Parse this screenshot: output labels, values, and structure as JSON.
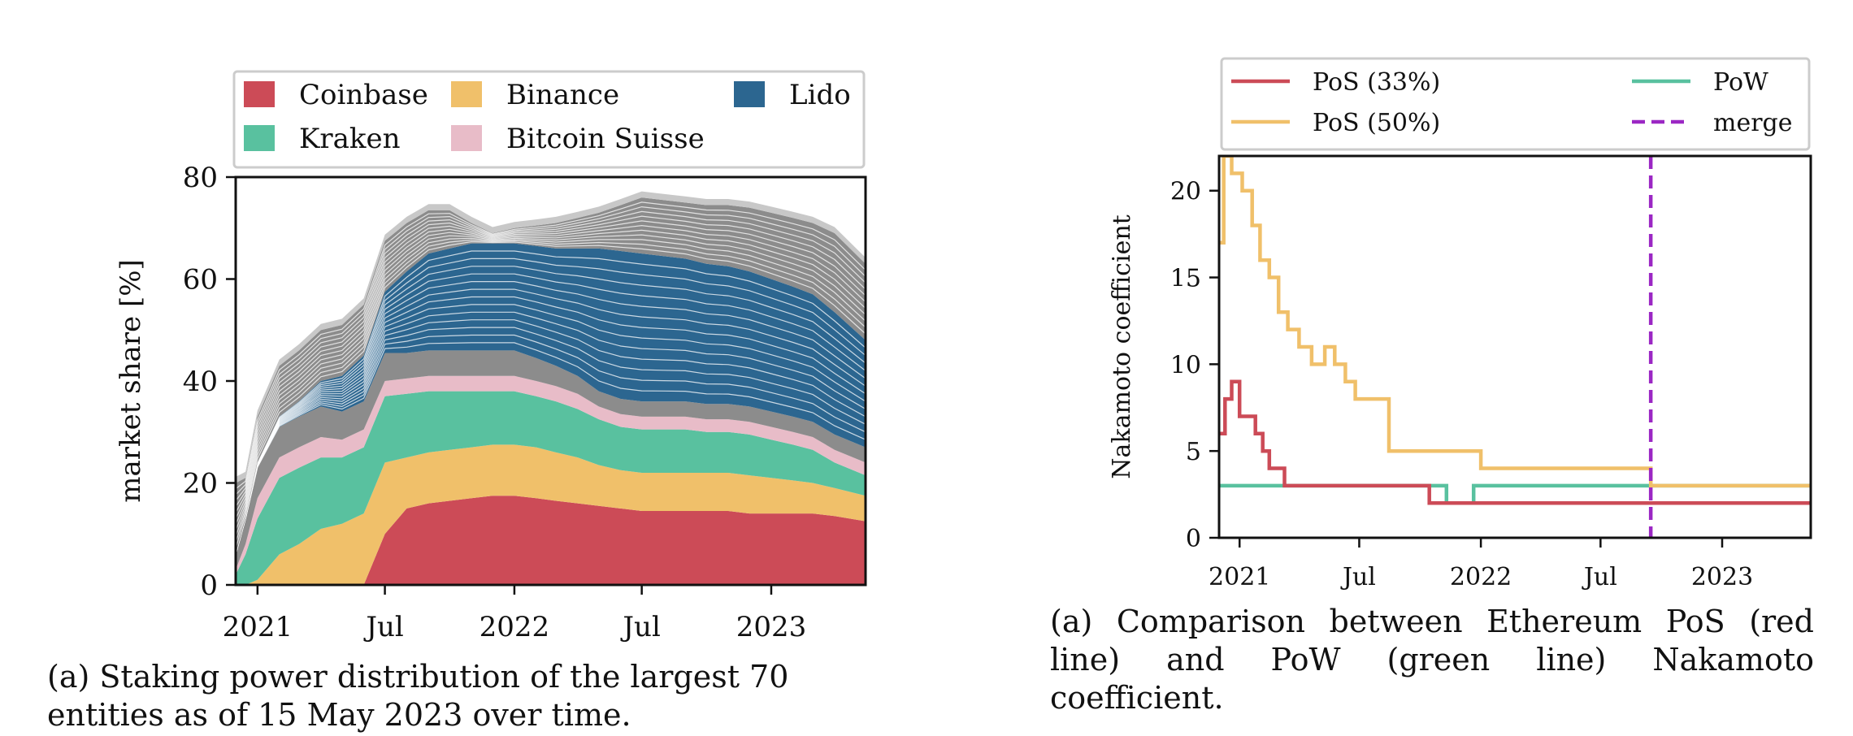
{
  "chart_data": [
    {
      "type": "area",
      "stacked": true,
      "ylabel": "market share [%]",
      "xlabel": "",
      "ylim": [
        0,
        80
      ],
      "yticks": [
        0,
        20,
        40,
        60,
        80
      ],
      "xticks": [
        "2021",
        "Jul",
        "2022",
        "Jul",
        "2023"
      ],
      "xtick_dates": [
        "2021-01-01",
        "2021-07-01",
        "2022-01-01",
        "2022-07-01",
        "2023-01-01"
      ],
      "xlim": [
        "2020-12-01",
        "2023-05-15"
      ],
      "legend_position": "top",
      "legend": [
        "Coinbase",
        "Binance",
        "Lido",
        "Kraken",
        "Bitcoin Suisse"
      ],
      "colors": {
        "Coinbase": "#cc4b57",
        "Binance": "#f0c06a",
        "Lido": "#2c6690",
        "Kraken": "#59c19f",
        "Bitcoin Suisse": "#e8bcc8",
        "other": "#8c8c8c"
      },
      "x": [
        "2020-12-01",
        "2020-12-15",
        "2021-01-01",
        "2021-02-01",
        "2021-03-01",
        "2021-04-01",
        "2021-05-01",
        "2021-06-01",
        "2021-07-01",
        "2021-08-01",
        "2021-09-01",
        "2021-10-01",
        "2021-11-01",
        "2021-12-01",
        "2022-01-01",
        "2022-02-01",
        "2022-03-01",
        "2022-04-01",
        "2022-05-01",
        "2022-06-01",
        "2022-07-01",
        "2022-08-01",
        "2022-09-01",
        "2022-10-01",
        "2022-11-01",
        "2022-12-01",
        "2023-01-01",
        "2023-02-01",
        "2023-03-01",
        "2023-04-01",
        "2023-05-15"
      ],
      "series": [
        {
          "name": "Coinbase",
          "values": [
            0,
            0,
            0,
            0,
            0,
            0,
            0,
            0,
            10,
            15,
            16,
            16.5,
            17,
            17.5,
            17.5,
            17,
            16.5,
            16,
            15.5,
            15,
            14.5,
            14.5,
            14.5,
            14.5,
            14.5,
            14,
            14,
            14,
            14,
            13.5,
            12.5
          ]
        },
        {
          "name": "Binance",
          "values": [
            0,
            0,
            1,
            6,
            8,
            11,
            12,
            14,
            14,
            10,
            10,
            10,
            10,
            10,
            10,
            10,
            9.5,
            9,
            8,
            7.5,
            7.5,
            7.5,
            7.5,
            7.5,
            7.5,
            7.5,
            7,
            6.5,
            6,
            5.5,
            5
          ]
        },
        {
          "name": "Kraken",
          "values": [
            2,
            6,
            12,
            15,
            15,
            14,
            13,
            13,
            13,
            12.5,
            12,
            11.5,
            11,
            10.5,
            10.5,
            10,
            10,
            9.5,
            9,
            8.5,
            8.5,
            8.5,
            8.5,
            8,
            8,
            8,
            7.5,
            7,
            6.5,
            5,
            4
          ]
        },
        {
          "name": "Bitcoin Suisse",
          "values": [
            1,
            2,
            4,
            4,
            4,
            4,
            3.5,
            3.5,
            3,
            3,
            3,
            3,
            3,
            3,
            3,
            3,
            3,
            3,
            2.5,
            2.5,
            2.5,
            2.5,
            2.5,
            2.5,
            2.5,
            2.5,
            2.5,
            2.5,
            2.5,
            2.5,
            2.5
          ]
        },
        {
          "name": "other-mid",
          "values": [
            3,
            5,
            6,
            6,
            6,
            6,
            5.5,
            5.5,
            5.5,
            5,
            5,
            5,
            5,
            5,
            5,
            4.5,
            4,
            3.5,
            3,
            3,
            3,
            3,
            3,
            3,
            3,
            3,
            3,
            3,
            3,
            3,
            3
          ]
        },
        {
          "name": "Lido",
          "values": [
            0,
            0,
            1,
            2,
            3,
            5,
            7,
            9,
            12,
            16,
            19,
            20,
            21,
            21,
            21,
            22,
            23,
            25,
            28,
            29,
            29,
            28.5,
            28,
            27.5,
            27,
            26.5,
            26,
            25.5,
            25,
            24,
            21
          ]
        },
        {
          "name": "other-top",
          "values": [
            14,
            8,
            9,
            10,
            10,
            10,
            10,
            10,
            10,
            9.5,
            8.5,
            7.5,
            4,
            2,
            3,
            4,
            5,
            6,
            7,
            9,
            11,
            11,
            11,
            11.5,
            12,
            12.5,
            13,
            13.5,
            14,
            15.5,
            15
          ]
        }
      ]
    },
    {
      "type": "line",
      "ylabel": "Nakamoto coefficient",
      "xlabel": "",
      "ylim": [
        0,
        22
      ],
      "yticks": [
        0,
        5,
        10,
        15,
        20
      ],
      "xticks": [
        "2021",
        "Jul",
        "2022",
        "Jul",
        "2023"
      ],
      "xtick_dates": [
        "2021-01-01",
        "2021-07-01",
        "2022-01-01",
        "2022-07-01",
        "2023-01-01"
      ],
      "xlim": [
        "2020-12-01",
        "2023-05-15"
      ],
      "legend_position": "top",
      "series": [
        {
          "name": "PoS (33%)",
          "color": "#cc4b57",
          "x": [
            "2020-12-01",
            "2020-12-10",
            "2020-12-20",
            "2021-01-01",
            "2021-01-15",
            "2021-01-25",
            "2021-02-05",
            "2021-02-15",
            "2021-02-25",
            "2021-03-10",
            "2021-04-01",
            "2021-08-01",
            "2021-10-15",
            "2022-01-01",
            "2022-06-01",
            "2022-09-15",
            "2023-01-01",
            "2023-05-15"
          ],
          "values": [
            6,
            8,
            9,
            7,
            7,
            6,
            5,
            4,
            4,
            3,
            3,
            3,
            2,
            2,
            2,
            2,
            2,
            2
          ]
        },
        {
          "name": "PoS (50%)",
          "color": "#f0c06a",
          "x": [
            "2020-12-01",
            "2020-12-08",
            "2020-12-20",
            "2021-01-05",
            "2021-01-20",
            "2021-02-01",
            "2021-02-15",
            "2021-03-01",
            "2021-03-15",
            "2021-04-01",
            "2021-04-20",
            "2021-05-10",
            "2021-05-25",
            "2021-06-10",
            "2021-06-25",
            "2021-08-15",
            "2022-01-01",
            "2022-04-15",
            "2022-09-15",
            "2023-05-15"
          ],
          "values": [
            17,
            22,
            21,
            20,
            18,
            16,
            15,
            13,
            12,
            11,
            10,
            11,
            10,
            9,
            8,
            5,
            4,
            4,
            3,
            3
          ]
        },
        {
          "name": "PoW",
          "color": "#59c19f",
          "x": [
            "2020-12-01",
            "2021-01-01",
            "2021-07-01",
            "2021-11-01",
            "2021-11-10",
            "2021-12-20",
            "2021-12-21",
            "2022-04-15",
            "2022-09-15"
          ],
          "values": [
            3,
            3,
            3,
            3,
            2,
            2,
            3,
            3,
            3
          ]
        }
      ],
      "merge_date": "2022-09-15",
      "merge_label": "merge"
    }
  ],
  "legend_left": {
    "items": [
      "Coinbase",
      "Binance",
      "Lido",
      "Kraken",
      "Bitcoin Suisse"
    ]
  },
  "legend_right": {
    "items": [
      "PoS (33%)",
      "PoW",
      "PoS (50%)",
      "merge"
    ]
  },
  "captions": {
    "left_line1": "(a) Staking power distribution of the largest 70",
    "left_line2": "entities as of 15 May 2023 over time.",
    "right_line1": "(a) Comparison between Ethereum PoS (red",
    "right_line2": "line) and PoW (green line) Nakamoto coefficient."
  }
}
